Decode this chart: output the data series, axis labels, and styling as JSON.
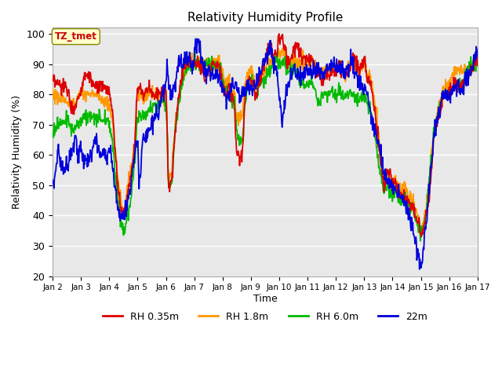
{
  "title": "Relativity Humidity Profile",
  "xlabel": "Time",
  "ylabel": "Relativity Humidity (%)",
  "ylim": [
    20,
    102
  ],
  "yticks": [
    20,
    30,
    40,
    50,
    60,
    70,
    80,
    90,
    100
  ],
  "colors": {
    "RH 0.35m": "#dd0000",
    "RH 1.8m": "#ff9900",
    "RH 6.0m": "#00bb00",
    "22m": "#0000dd"
  },
  "legend_label": "TZ_tmet",
  "background_color": "#e8e8e8",
  "plot_bg": "#e8e8e8",
  "line_width": 1.3,
  "n_points": 960,
  "n_days": 15
}
